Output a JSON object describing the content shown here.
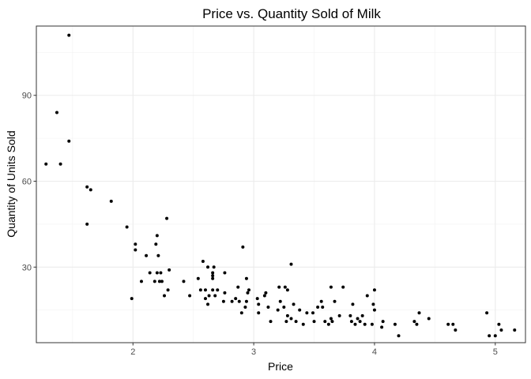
{
  "chart_data": {
    "type": "scatter",
    "title": "Price vs. Quantity Sold of Milk",
    "xlabel": "Price",
    "ylabel": "Quantity of Units Sold",
    "xlim": [
      1.2,
      5.25
    ],
    "ylim": [
      3.6,
      114.2
    ],
    "x_ticks": [
      2,
      3,
      4,
      5
    ],
    "x_tick_labels": [
      "2",
      "3",
      "4",
      "5"
    ],
    "y_ticks": [
      30,
      60,
      90
    ],
    "y_tick_labels": [
      "30",
      "60",
      "90"
    ],
    "x_minor": [
      1.5,
      2.5,
      3.5,
      4.5
    ],
    "y_minor": [
      15,
      45,
      75,
      105
    ],
    "grid": true,
    "theme": "bw",
    "point_color": "#000000",
    "points": [
      [
        1.47,
        111
      ],
      [
        1.37,
        84
      ],
      [
        1.47,
        74
      ],
      [
        1.28,
        66
      ],
      [
        1.4,
        66
      ],
      [
        1.62,
        58
      ],
      [
        1.65,
        57
      ],
      [
        1.82,
        53
      ],
      [
        1.62,
        45
      ],
      [
        1.95,
        44
      ],
      [
        2.28,
        47
      ],
      [
        2.2,
        41
      ],
      [
        2.02,
        38
      ],
      [
        2.19,
        38
      ],
      [
        2.02,
        36
      ],
      [
        2.11,
        34
      ],
      [
        2.21,
        34
      ],
      [
        2.3,
        29
      ],
      [
        2.14,
        28
      ],
      [
        2.2,
        28
      ],
      [
        2.23,
        28
      ],
      [
        2.18,
        25
      ],
      [
        2.22,
        25
      ],
      [
        2.07,
        25
      ],
      [
        2.24,
        25
      ],
      [
        2.29,
        22
      ],
      [
        2.26,
        20
      ],
      [
        1.99,
        19
      ],
      [
        2.47,
        20
      ],
      [
        2.42,
        25
      ],
      [
        2.54,
        26
      ],
      [
        2.58,
        32
      ],
      [
        2.62,
        30
      ],
      [
        2.67,
        30
      ],
      [
        2.66,
        28
      ],
      [
        2.66,
        27
      ],
      [
        2.66,
        26
      ],
      [
        2.76,
        28
      ],
      [
        2.56,
        22
      ],
      [
        2.6,
        22
      ],
      [
        2.66,
        22
      ],
      [
        2.7,
        22
      ],
      [
        2.76,
        21
      ],
      [
        2.63,
        20
      ],
      [
        2.68,
        20
      ],
      [
        2.6,
        19
      ],
      [
        2.62,
        17
      ],
      [
        2.75,
        18
      ],
      [
        2.82,
        18
      ],
      [
        2.88,
        18
      ],
      [
        2.85,
        19
      ],
      [
        2.87,
        23
      ],
      [
        2.91,
        37
      ],
      [
        2.94,
        26
      ],
      [
        2.96,
        22
      ],
      [
        2.95,
        21
      ],
      [
        2.94,
        18
      ],
      [
        2.93,
        16
      ],
      [
        2.9,
        14
      ],
      [
        3.03,
        19
      ],
      [
        3.04,
        17
      ],
      [
        3.04,
        14
      ],
      [
        3.1,
        21
      ],
      [
        3.09,
        20
      ],
      [
        3.12,
        16
      ],
      [
        3.14,
        11
      ],
      [
        3.21,
        23
      ],
      [
        3.26,
        23
      ],
      [
        3.28,
        22
      ],
      [
        3.22,
        18
      ],
      [
        3.2,
        15
      ],
      [
        3.25,
        16
      ],
      [
        3.28,
        13
      ],
      [
        3.27,
        11
      ],
      [
        3.31,
        12
      ],
      [
        3.31,
        31
      ],
      [
        3.33,
        17
      ],
      [
        3.35,
        11
      ],
      [
        3.38,
        15
      ],
      [
        3.41,
        10
      ],
      [
        3.44,
        14
      ],
      [
        3.5,
        11
      ],
      [
        3.49,
        14
      ],
      [
        3.53,
        16
      ],
      [
        3.56,
        18
      ],
      [
        3.57,
        16
      ],
      [
        3.59,
        11
      ],
      [
        3.62,
        10
      ],
      [
        3.64,
        23
      ],
      [
        3.67,
        18
      ],
      [
        3.64,
        12
      ],
      [
        3.65,
        11
      ],
      [
        3.74,
        23
      ],
      [
        3.71,
        13
      ],
      [
        3.8,
        13
      ],
      [
        3.82,
        17
      ],
      [
        3.81,
        11
      ],
      [
        3.84,
        10
      ],
      [
        3.86,
        12
      ],
      [
        3.88,
        11
      ],
      [
        3.9,
        13
      ],
      [
        3.92,
        10
      ],
      [
        3.94,
        20
      ],
      [
        3.99,
        17
      ],
      [
        4.0,
        15
      ],
      [
        3.98,
        10
      ],
      [
        4.0,
        22
      ],
      [
        4.07,
        11
      ],
      [
        4.06,
        9
      ],
      [
        4.17,
        10
      ],
      [
        4.2,
        6
      ],
      [
        4.33,
        11
      ],
      [
        4.35,
        10
      ],
      [
        4.37,
        14
      ],
      [
        4.45,
        12
      ],
      [
        4.61,
        10
      ],
      [
        4.65,
        10
      ],
      [
        4.67,
        8
      ],
      [
        4.93,
        14
      ],
      [
        4.95,
        6
      ],
      [
        5.0,
        6
      ],
      [
        5.03,
        10
      ],
      [
        5.05,
        8
      ],
      [
        5.16,
        8
      ]
    ]
  }
}
